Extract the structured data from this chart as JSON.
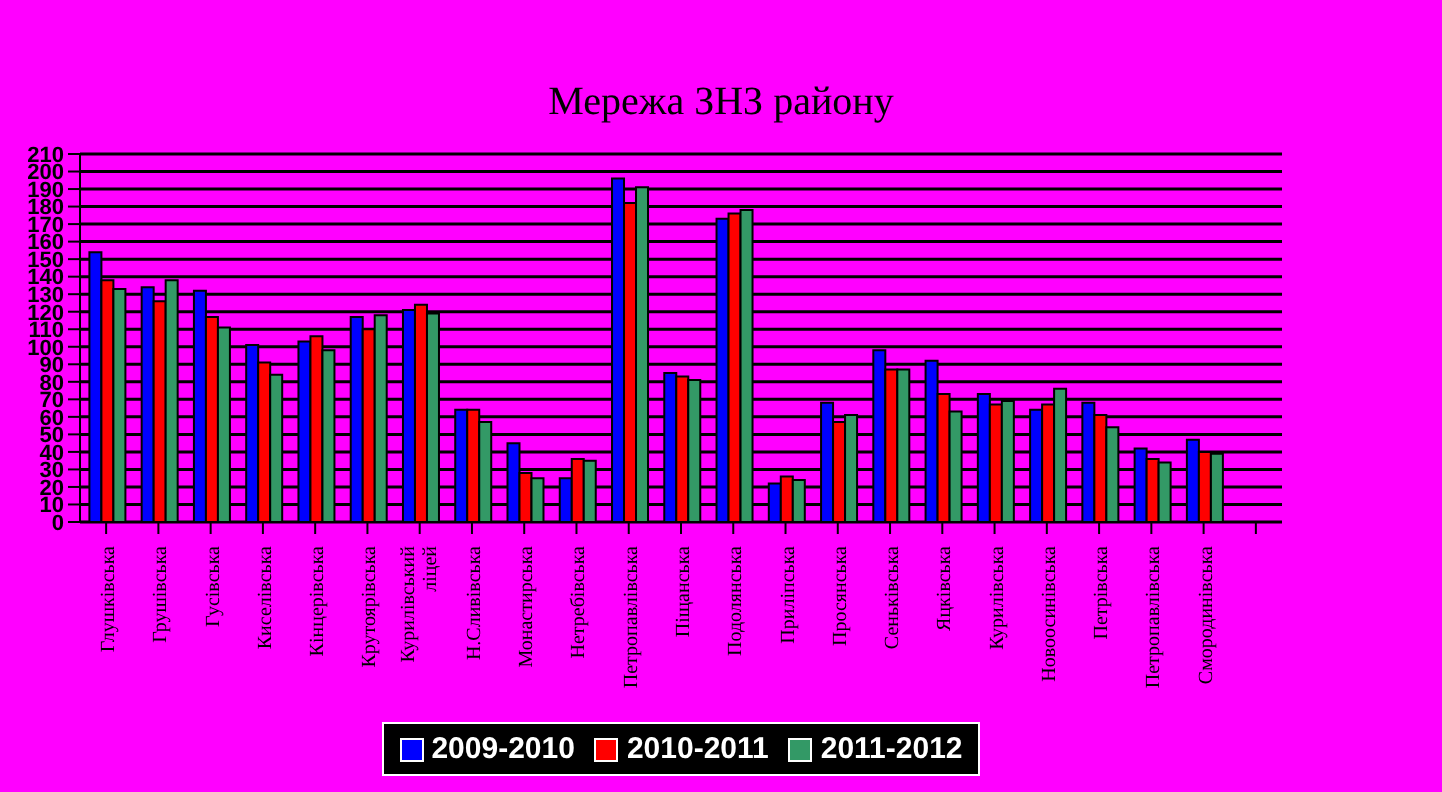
{
  "chart_data": {
    "type": "bar",
    "title": "Мережа ЗНЗ району",
    "categories": [
      "Глушківська",
      "Грушівська",
      "Гусівська",
      "Киселівська",
      "Кінцерівська",
      "Крутоярівська",
      "Курилівський ліцей",
      "Н.Сливівська",
      "Монастирська",
      "Нетребівська",
      "Петропавлівська",
      "Піщанська",
      "Подолянська",
      "Приліпська",
      "Просянська",
      "Сеньківська",
      "Яцківська",
      "Курилівська",
      "Новоосинівська",
      "Петрівська",
      "Петропавлівська",
      "Смородинівська",
      null
    ],
    "series": [
      {
        "name": "2009-2010",
        "color": "#0000ff",
        "values": [
          154,
          134,
          132,
          101,
          103,
          117,
          121,
          64,
          45,
          25,
          196,
          85,
          173,
          22,
          68,
          98,
          92,
          73,
          64,
          68,
          42,
          47,
          null
        ]
      },
      {
        "name": "2010-2011",
        "color": "#ff0000",
        "values": [
          138,
          126,
          117,
          91,
          106,
          110,
          124,
          64,
          28,
          36,
          182,
          83,
          176,
          26,
          57,
          87,
          73,
          67,
          67,
          61,
          36,
          40,
          null
        ]
      },
      {
        "name": "2011-2012",
        "color": "#339966",
        "values": [
          133,
          138,
          111,
          84,
          98,
          118,
          119,
          57,
          25,
          35,
          191,
          81,
          178,
          24,
          61,
          87,
          63,
          69,
          76,
          54,
          34,
          39,
          null
        ]
      }
    ],
    "ylim": [
      0,
      210
    ],
    "yticks": [
      0,
      10,
      20,
      30,
      40,
      50,
      60,
      70,
      80,
      90,
      100,
      110,
      120,
      130,
      140,
      150,
      160,
      170,
      180,
      190,
      200,
      210
    ],
    "grid": "y",
    "legend": "bottom"
  }
}
